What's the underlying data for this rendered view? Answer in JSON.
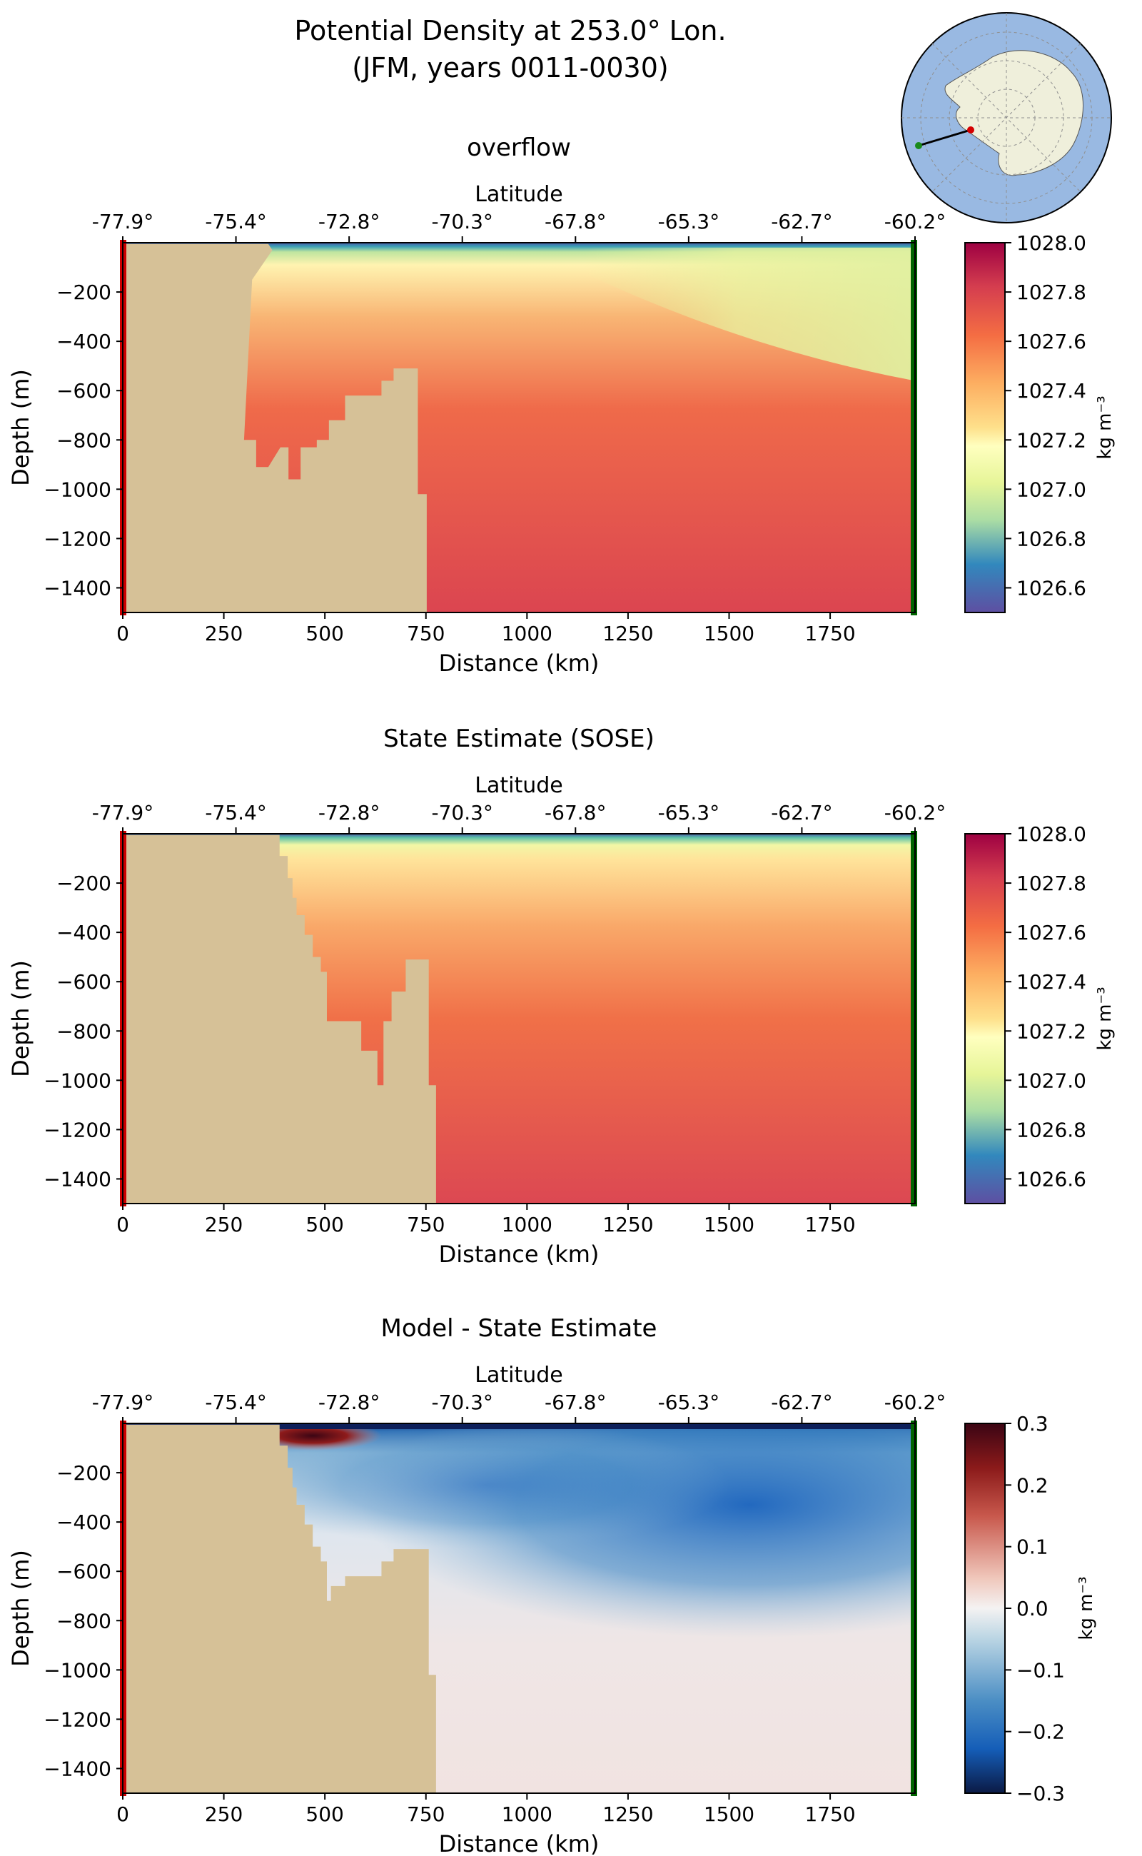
{
  "figure": {
    "title_line1": "Potential Density at 253.0° Lon.",
    "title_line2": "(JFM, years 0011-0030)"
  },
  "inset_map": {
    "land_color": "#efefdb",
    "ocean_color": "#99b9e2",
    "section_start_marker_color": "#d40000",
    "section_end_marker_color": "#1a8a1a"
  },
  "colors": {
    "land_mask": "#d6c197",
    "left_edge_marker": "#cc0000",
    "right_edge_marker": "#006400"
  },
  "chart_data": [
    {
      "type": "heatmap",
      "title": "overflow",
      "xlabel": "Distance (km)",
      "ylabel": "Depth (m)",
      "top_axis_label": "Latitude",
      "xlim": [
        0,
        1960
      ],
      "ylim": [
        -1500,
        0
      ],
      "xticks": [
        0,
        250,
        500,
        750,
        1000,
        1250,
        1500,
        1750
      ],
      "yticks": [
        -200,
        -400,
        -600,
        -800,
        -1000,
        -1200,
        -1400
      ],
      "latitude_ticks": [
        "-77.9°",
        "-75.4°",
        "-72.8°",
        "-70.3°",
        "-67.8°",
        "-65.3°",
        "-62.7°",
        "-60.2°"
      ],
      "colorbar": {
        "label": "kg m⁻³",
        "colormap": "Spectral_r",
        "range": [
          1026.5,
          1028.0
        ],
        "ticks": [
          "1028.0",
          "1027.8",
          "1027.6",
          "1027.4",
          "1027.2",
          "1027.0",
          "1026.8",
          "1026.6"
        ]
      },
      "land_profile": [
        [
          0,
          -5
        ],
        [
          260,
          -5
        ],
        [
          360,
          -5
        ],
        [
          370,
          -30
        ],
        [
          320,
          -150
        ],
        [
          300,
          -800
        ],
        [
          330,
          -800
        ],
        [
          330,
          -910
        ],
        [
          360,
          -910
        ],
        [
          390,
          -830
        ],
        [
          410,
          -830
        ],
        [
          410,
          -960
        ],
        [
          440,
          -960
        ],
        [
          440,
          -830
        ],
        [
          480,
          -830
        ],
        [
          480,
          -800
        ],
        [
          510,
          -800
        ],
        [
          510,
          -720
        ],
        [
          550,
          -720
        ],
        [
          550,
          -620
        ],
        [
          640,
          -620
        ],
        [
          640,
          -560
        ],
        [
          670,
          -560
        ],
        [
          670,
          -510
        ],
        [
          730,
          -510
        ],
        [
          730,
          -1020
        ],
        [
          752,
          -1020
        ],
        [
          752,
          -1500
        ]
      ],
      "density_fields": {
        "surface_layer": [
          [
            0,
            1026.5
          ],
          [
            40,
            1026.9
          ],
          [
            90,
            1027.15
          ]
        ],
        "deep_water": 1027.85
      }
    },
    {
      "type": "heatmap",
      "title": "State Estimate (SOSE)",
      "xlabel": "Distance (km)",
      "ylabel": "Depth (m)",
      "top_axis_label": "Latitude",
      "xlim": [
        0,
        1960
      ],
      "ylim": [
        -1500,
        0
      ],
      "xticks": [
        0,
        250,
        500,
        750,
        1000,
        1250,
        1500,
        1750
      ],
      "yticks": [
        -200,
        -400,
        -600,
        -800,
        -1000,
        -1200,
        -1400
      ],
      "latitude_ticks": [
        "-77.9°",
        "-75.4°",
        "-72.8°",
        "-70.3°",
        "-67.8°",
        "-65.3°",
        "-62.7°",
        "-60.2°"
      ],
      "colorbar": {
        "label": "kg m⁻³",
        "colormap": "Spectral_r",
        "range": [
          1026.5,
          1028.0
        ],
        "ticks": [
          "1028.0",
          "1027.8",
          "1027.6",
          "1027.4",
          "1027.2",
          "1027.0",
          "1026.8",
          "1026.6"
        ]
      },
      "land_profile": [
        [
          0,
          -5
        ],
        [
          388,
          -5
        ],
        [
          388,
          -90
        ],
        [
          408,
          -90
        ],
        [
          408,
          -180
        ],
        [
          420,
          -180
        ],
        [
          420,
          -260
        ],
        [
          430,
          -260
        ],
        [
          430,
          -330
        ],
        [
          450,
          -330
        ],
        [
          450,
          -410
        ],
        [
          470,
          -410
        ],
        [
          470,
          -500
        ],
        [
          490,
          -500
        ],
        [
          490,
          -560
        ],
        [
          505,
          -560
        ],
        [
          505,
          -760
        ],
        [
          590,
          -760
        ],
        [
          590,
          -880
        ],
        [
          630,
          -880
        ],
        [
          630,
          -1020
        ],
        [
          645,
          -1020
        ],
        [
          645,
          -760
        ],
        [
          665,
          -760
        ],
        [
          665,
          -640
        ],
        [
          700,
          -640
        ],
        [
          700,
          -510
        ],
        [
          757,
          -510
        ],
        [
          757,
          -1020
        ],
        [
          775,
          -1020
        ],
        [
          775,
          -1500
        ]
      ],
      "density_fields": {
        "surface_layer": [
          [
            0,
            1026.5
          ],
          [
            40,
            1026.9
          ],
          [
            90,
            1027.15
          ]
        ],
        "deep_water": 1027.8
      }
    },
    {
      "type": "heatmap",
      "title": "Model - State Estimate",
      "xlabel": "Distance (km)",
      "ylabel": "Depth (m)",
      "top_axis_label": "Latitude",
      "xlim": [
        0,
        1960
      ],
      "ylim": [
        -1500,
        0
      ],
      "xticks": [
        0,
        250,
        500,
        750,
        1000,
        1250,
        1500,
        1750
      ],
      "yticks": [
        -200,
        -400,
        -600,
        -800,
        -1000,
        -1200,
        -1400
      ],
      "latitude_ticks": [
        "-77.9°",
        "-75.4°",
        "-72.8°",
        "-70.3°",
        "-67.8°",
        "-65.3°",
        "-62.7°",
        "-60.2°"
      ],
      "colorbar": {
        "label": "kg m⁻³",
        "colormap": "RdBu_r",
        "range": [
          -0.3,
          0.3
        ],
        "ticks": [
          "0.3",
          "0.2",
          "0.1",
          "0.0",
          "−0.1",
          "−0.2",
          "−0.3"
        ]
      },
      "land_profile": [
        [
          0,
          -5
        ],
        [
          388,
          -5
        ],
        [
          388,
          -90
        ],
        [
          408,
          -90
        ],
        [
          408,
          -180
        ],
        [
          420,
          -180
        ],
        [
          420,
          -260
        ],
        [
          430,
          -260
        ],
        [
          430,
          -330
        ],
        [
          450,
          -330
        ],
        [
          450,
          -410
        ],
        [
          470,
          -410
        ],
        [
          470,
          -500
        ],
        [
          490,
          -500
        ],
        [
          490,
          -560
        ],
        [
          505,
          -560
        ],
        [
          505,
          -720
        ],
        [
          515,
          -720
        ],
        [
          515,
          -660
        ],
        [
          550,
          -660
        ],
        [
          550,
          -620
        ],
        [
          640,
          -620
        ],
        [
          640,
          -560
        ],
        [
          670,
          -560
        ],
        [
          670,
          -510
        ],
        [
          757,
          -510
        ],
        [
          757,
          -1020
        ],
        [
          775,
          -1020
        ],
        [
          775,
          -1500
        ]
      ],
      "anomaly_regions": {
        "positive_max_near_shelf": 0.3,
        "negative_min_offshore": -0.22
      }
    }
  ]
}
